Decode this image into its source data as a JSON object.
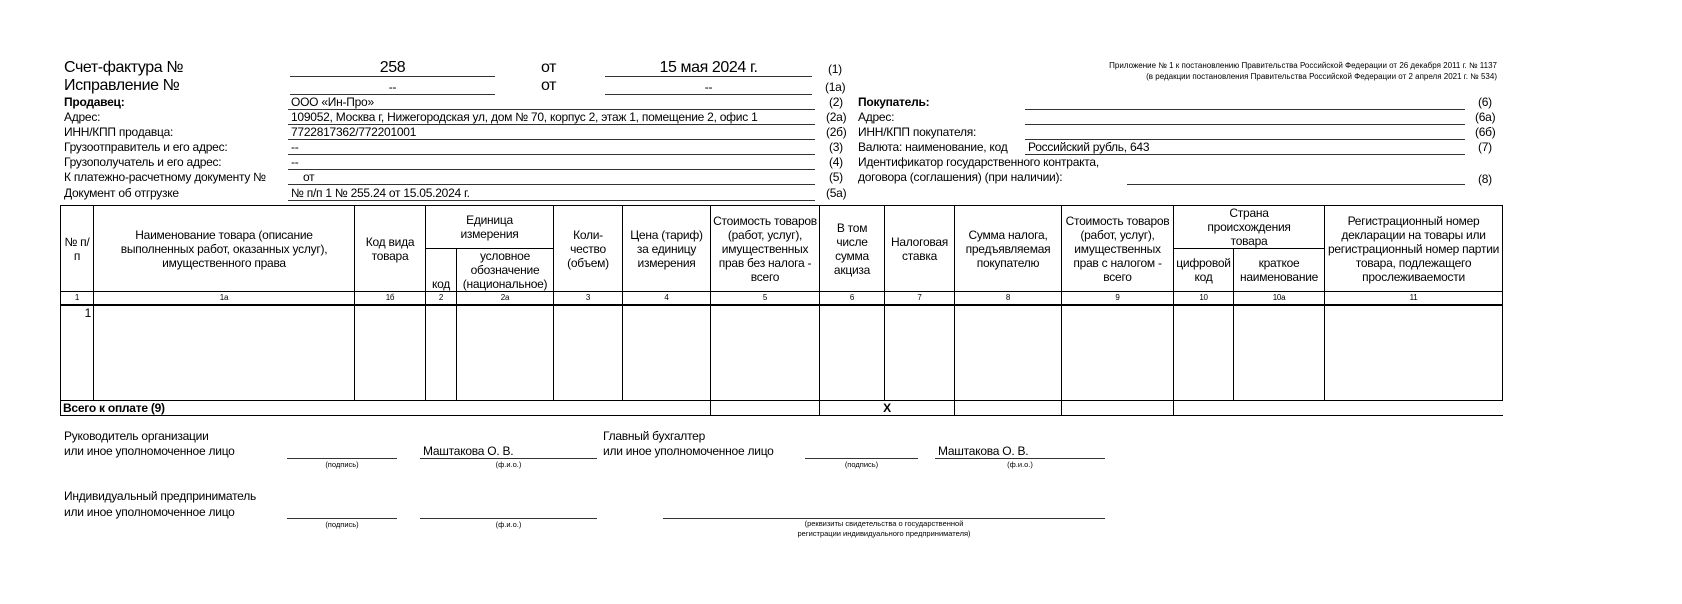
{
  "header": {
    "invoice_label": "Счет-фактура №",
    "invoice_number": "258",
    "from": "от",
    "invoice_date": "15 мая 2024 г.",
    "code_1": "(1)",
    "correction_label": "Исправление №",
    "correction_number": "--",
    "correction_from": "от",
    "correction_date": "--",
    "code_1a": "(1а)",
    "appendix_line1": "Приложение № 1 к постановлению Правительства Российской Федерации от 26 декабря 2011 г. № 1137",
    "appendix_line2": "(в редакции постановления Правительства Российской Федерации от 2 апреля 2021 г. № 534)"
  },
  "seller": [
    {
      "label": "Продавец:",
      "value": "ООО «Ин-Про»",
      "code": "(2)"
    },
    {
      "label": "Адрес:",
      "value": "109052, Москва г, Нижегородская ул, дом № 70, корпус 2, этаж 1, помещение 2, офис 1",
      "code": "(2а)"
    },
    {
      "label": "ИНН/КПП продавца:",
      "value": "7722817362/772201001",
      "code": "(2б)"
    },
    {
      "label": "Грузоотправитель и его адрес:",
      "value": "--",
      "code": "(3)"
    },
    {
      "label": "Грузополучатель и его адрес:",
      "value": "--",
      "code": "(4)"
    },
    {
      "label": "К платежно-расчетному документу №",
      "value": "от",
      "code": "(5)"
    },
    {
      "label": "Документ об отгрузке",
      "value": "№ п/п 1 № 255.24 от 15.05.2024 г.",
      "code": "(5а)"
    }
  ],
  "buyer": {
    "buyer_label": "Покупатель:",
    "buyer_value": "",
    "buyer_code": "(6)",
    "address_label": "Адрес:",
    "address_value": "",
    "address_code": "(6а)",
    "inn_label": "ИНН/КПП покупателя:",
    "inn_value": "",
    "inn_code": "(6б)",
    "currency_label": "Валюта: наименование, код",
    "currency_value": "Российский рубль, 643",
    "currency_code": "(7)",
    "contract_label1": "Идентификатор государственного контракта,",
    "contract_label2": "договора (соглашения) (при наличии):",
    "contract_value": "",
    "contract_code": "(8)"
  },
  "table": {
    "h_no": "№ п/п",
    "h_name": "Наименование товара (описание выполненных работ, оказанных услуг), имущественного права",
    "h_kind": "Код вида товара",
    "h_unit": "Единица измерения",
    "h_unit_code": "код",
    "h_unit_name": "условное обозначение (национальное)",
    "h_qty": "Коли-чество (объем)",
    "h_price": "Цена (тариф) за единицу измерения",
    "h_cost": "Стоимость товаров (работ, услуг), имущественных прав без налога - всего",
    "h_excise": "В том числе сумма акциза",
    "h_rate": "Налоговая ставка",
    "h_tax": "Сумма налога, предъявляемая покупателю",
    "h_total": "Стоимость товаров (работ, услуг), имущественных прав с налогом - всего",
    "h_country": "Страна происхождения товара",
    "h_country_code": "цифровой код",
    "h_country_name": "краткое наименование",
    "h_reg": "Регистрационный номер декларации на товары или регистрационный номер партии товара, подлежащего прослеживаемости",
    "numbers": [
      "1",
      "1а",
      "1б",
      "2",
      "2а",
      "3",
      "4",
      "5",
      "6",
      "7",
      "8",
      "9",
      "10",
      "10а",
      "11"
    ],
    "rows": [
      {
        "no": "1",
        "name": "",
        "kind": "",
        "unit_code": "",
        "unit_name": "",
        "qty": "",
        "price": "",
        "cost": "",
        "excise": "",
        "rate": "",
        "tax": "",
        "total": "",
        "country_code": "",
        "country_name": "",
        "reg": ""
      }
    ],
    "total_label": "Всего к оплате (9)",
    "total_cost": "",
    "total_x": "X",
    "total_tax": "",
    "total_sum": ""
  },
  "signatures": {
    "head_label1": "Руководитель организации",
    "head_label2": "или иное уполномоченное лицо",
    "head_name": "Маштакова О. В.",
    "acc_label1": "Главный бухгалтер",
    "acc_label2": "или иное уполномоченное лицо",
    "acc_name": "Маштакова О. В.",
    "ip_label1": "Индивидуальный предприниматель",
    "ip_label2": "или иное уполномоченное лицо",
    "sign_caption": "(подпись)",
    "fio_caption": "(ф.и.о.)",
    "ip_req_caption1": "(реквизиты свидетельства о государственной",
    "ip_req_caption2": "регистрации индивидуального предпринимателя)"
  }
}
